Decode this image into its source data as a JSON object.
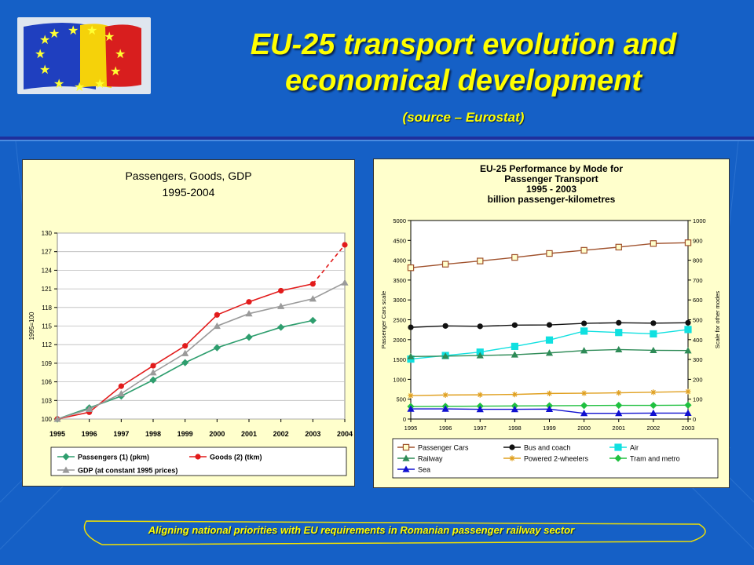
{
  "slide": {
    "title_line1": "EU-25 transport evolution and",
    "title_line2": "economical development",
    "subtitle": "(source – Eurostat)",
    "footer": "Aligning national priorities with EU requirements in Romanian passenger railway sector"
  },
  "chart_data": [
    {
      "type": "line",
      "title": "Passengers, Goods, GDP",
      "subtitle": "1995-2004",
      "ylabel": "1995=100",
      "categories": [
        "1995",
        "1996",
        "1997",
        "1998",
        "1999",
        "2000",
        "2001",
        "2002",
        "2003",
        "2004"
      ],
      "ylim": [
        100,
        130
      ],
      "yticks": [
        100,
        103,
        106,
        109,
        112,
        115,
        118,
        121,
        124,
        127,
        130
      ],
      "grid": true,
      "legend_position": "bottom",
      "series": [
        {
          "name": "Passengers (1) (pkm)",
          "color": "#2e9e6e",
          "marker": "diamond",
          "values": [
            100,
            101.8,
            103.7,
            106.3,
            109.1,
            111.5,
            113.2,
            114.8,
            115.9,
            null
          ]
        },
        {
          "name": "Goods (2) (tkm)",
          "color": "#e21b1b",
          "marker": "circle",
          "values": [
            100,
            101.1,
            105.3,
            108.6,
            111.8,
            116.8,
            118.9,
            120.7,
            121.8,
            128.1
          ],
          "dashed_last_segment": true
        },
        {
          "name": "GDP (at constant 1995 prices)",
          "color": "#9a9a9a",
          "marker": "triangle",
          "values": [
            100,
            101.6,
            104.1,
            107.5,
            110.6,
            115,
            117,
            118.2,
            119.4,
            122
          ]
        }
      ]
    },
    {
      "type": "line",
      "title_lines": [
        "EU-25 Performance by Mode for",
        "Passenger Transport",
        "1995 - 2003",
        "billion passenger-kilometres"
      ],
      "ylabel_left": "Passenger Cars scale",
      "ylabel_right": "Scale for other modes",
      "categories": [
        "1995",
        "1996",
        "1997",
        "1998",
        "1999",
        "2000",
        "2001",
        "2002",
        "2003"
      ],
      "ylim_left": [
        0,
        5000
      ],
      "yticks_left": [
        0,
        500,
        1000,
        1500,
        2000,
        2500,
        3000,
        3500,
        4000,
        4500,
        5000
      ],
      "ylim_right": [
        0,
        1000
      ],
      "yticks_right": [
        0,
        100,
        200,
        300,
        400,
        500,
        600,
        700,
        800,
        900,
        1000
      ],
      "grid": false,
      "legend_position": "bottom",
      "series": [
        {
          "name": "Passenger Cars",
          "axis": "left",
          "color": "#a0522d",
          "marker": "square-open",
          "values": [
            3810,
            3900,
            3980,
            4070,
            4170,
            4250,
            4330,
            4420,
            4440
          ]
        },
        {
          "name": "Bus and coach",
          "axis": "right",
          "color": "#111111",
          "marker": "circle",
          "values": [
            462,
            469,
            467,
            473,
            474,
            482,
            485,
            483,
            485
          ]
        },
        {
          "name": "Air",
          "axis": "right",
          "color": "#10e0e0",
          "marker": "square",
          "values": [
            302,
            320,
            337,
            366,
            398,
            443,
            436,
            429,
            451
          ]
        },
        {
          "name": "Railway",
          "axis": "right",
          "color": "#2e8b57",
          "marker": "triangle",
          "values": [
            315,
            317,
            320,
            324,
            333,
            345,
            350,
            346,
            345
          ]
        },
        {
          "name": "Powered 2-wheelers",
          "axis": "right",
          "color": "#e0a020",
          "marker": "star",
          "values": [
            118,
            121,
            122,
            124,
            129,
            130,
            132,
            135,
            138
          ]
        },
        {
          "name": "Tram and metro",
          "axis": "right",
          "color": "#20c040",
          "marker": "diamond",
          "values": [
            63,
            64,
            65,
            66,
            67,
            68,
            69,
            69,
            70
          ]
        },
        {
          "name": "Sea",
          "axis": "right",
          "color": "#1010d0",
          "marker": "triangle",
          "values": [
            51,
            51,
            49,
            49,
            50,
            29,
            29,
            30,
            30
          ]
        }
      ]
    }
  ]
}
